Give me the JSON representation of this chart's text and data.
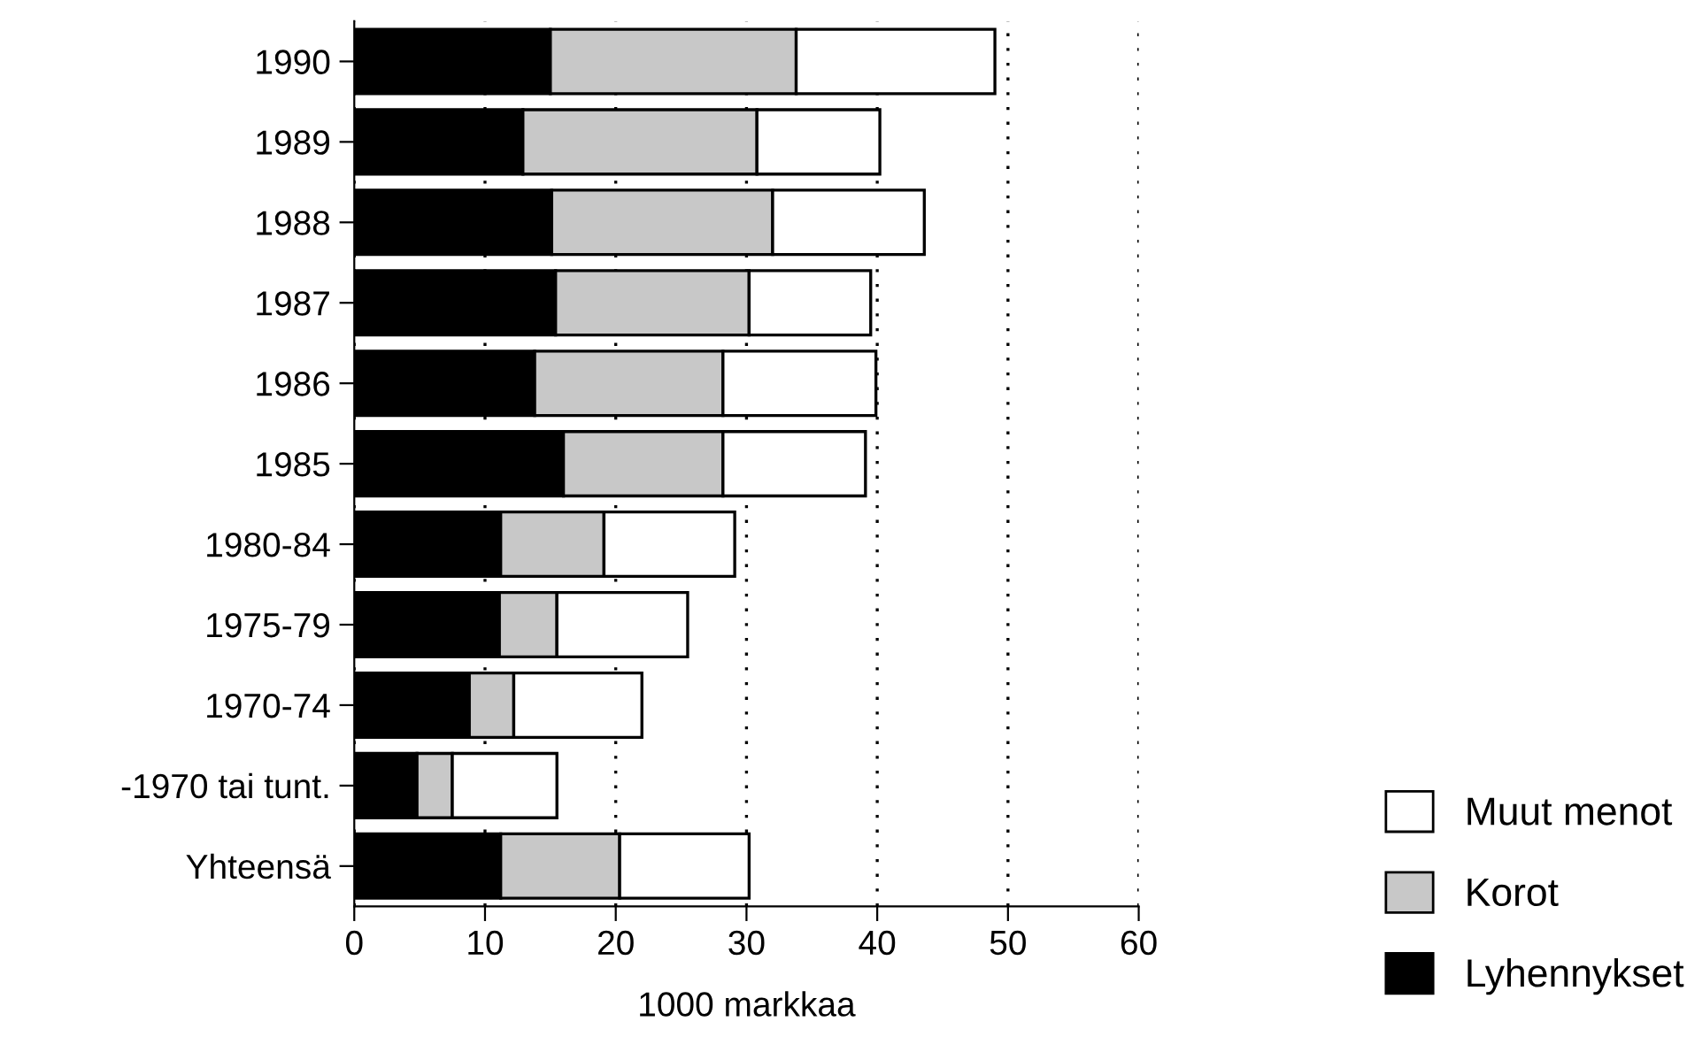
{
  "chart_data": {
    "type": "bar",
    "orientation": "horizontal",
    "stacked": true,
    "xlabel": "1000 markkaa",
    "categories": [
      "1990",
      "1989",
      "1988",
      "1987",
      "1986",
      "1985",
      "1980-84",
      "1975-79",
      "1970-74",
      "-1970 tai tunt.",
      "Yhteensä"
    ],
    "series": [
      {
        "name": "Lyhennykset",
        "color": "#000000",
        "values": [
          15.0,
          12.9,
          15.1,
          15.4,
          13.8,
          16.0,
          11.2,
          11.1,
          8.8,
          4.8,
          11.2
        ]
      },
      {
        "name": "Korot",
        "color": "#c8c8c8",
        "values": [
          18.8,
          17.9,
          16.9,
          14.8,
          14.4,
          12.2,
          7.9,
          4.4,
          3.4,
          2.7,
          9.1
        ]
      },
      {
        "name": "Muut menot",
        "color": "#ffffff",
        "values": [
          15.2,
          9.4,
          11.6,
          9.3,
          11.7,
          10.9,
          10.0,
          10.0,
          9.8,
          8.0,
          9.9
        ]
      }
    ],
    "xlim": [
      0,
      60
    ],
    "xticks": [
      0,
      10,
      20,
      30,
      40,
      50,
      60
    ],
    "grid": "x",
    "legend": "bottom right"
  }
}
